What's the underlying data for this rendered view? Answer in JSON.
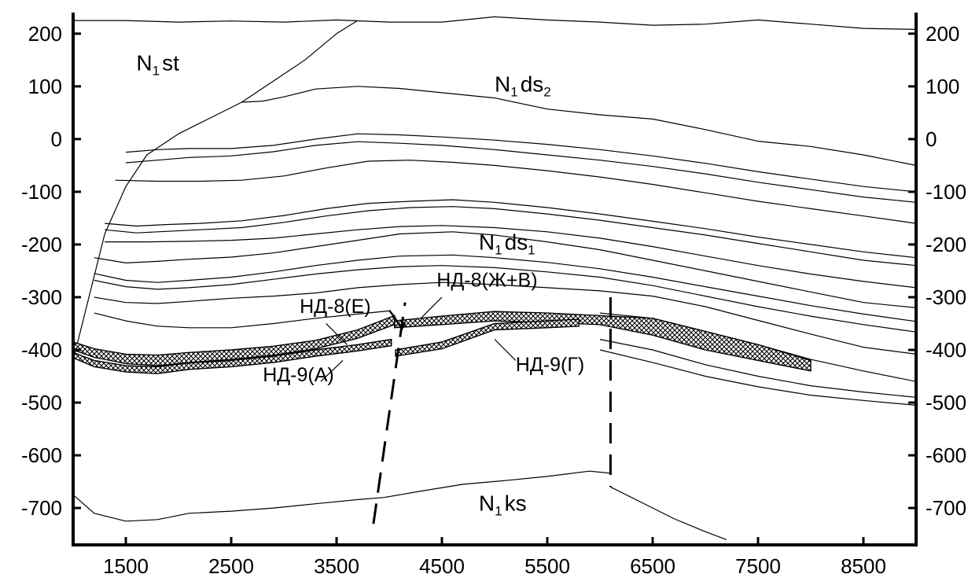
{
  "chart_data": {
    "type": "line",
    "title": "",
    "xlabel": "",
    "ylabel": "",
    "xlim": [
      1000,
      9000
    ],
    "ylim": [
      -770,
      240
    ],
    "x_ticks": [
      "1500",
      "2500",
      "3500",
      "4500",
      "5500",
      "6500",
      "7500",
      "8500"
    ],
    "y_ticks_left": [
      "200",
      "100",
      "0",
      "-100",
      "-200",
      "-300",
      "-400",
      "-500",
      "-600",
      "-700"
    ],
    "y_ticks_right": [
      "200",
      "100",
      "0",
      "-100",
      "-200",
      "-300",
      "-400",
      "-500",
      "-600",
      "-700"
    ],
    "formations": [
      {
        "base": "N",
        "sub1": "1",
        "text": "st",
        "x": 1600,
        "y": 130
      },
      {
        "base": "N",
        "sub1": "1",
        "text": "ds",
        "sub2": "2",
        "x": 5000,
        "y": 90
      },
      {
        "base": "N",
        "sub1": "1",
        "text": "ds",
        "sub2": "1",
        "x": 4850,
        "y": -210
      },
      {
        "base": "N",
        "sub1": "1",
        "text": "ks",
        "x": 4850,
        "y": -705
      }
    ],
    "series": [
      {
        "x": [
          1000,
          1500,
          2000,
          2500,
          3000,
          3500,
          4000,
          4500,
          5000,
          5500,
          6000,
          6500,
          7000,
          7500,
          8000,
          8500,
          9000
        ],
        "y": [
          225,
          225,
          222,
          224,
          222,
          226,
          222,
          222,
          232,
          226,
          222,
          216,
          218,
          226,
          218,
          210,
          208
        ]
      },
      {
        "x": [
          1000,
          1150,
          1300,
          1500,
          1700,
          2000,
          2300,
          2600,
          2900,
          3200,
          3500,
          3700
        ],
        "y": [
          -420,
          -300,
          -180,
          -90,
          -30,
          10,
          40,
          70,
          110,
          150,
          200,
          225
        ]
      },
      {
        "x": [
          2600,
          2800,
          3000,
          3300,
          3700,
          4100,
          4500,
          5000,
          5500,
          6000,
          6500,
          7000,
          7500,
          8000,
          8500,
          9000
        ],
        "y": [
          70,
          72,
          80,
          95,
          100,
          96,
          88,
          78,
          57,
          46,
          38,
          18,
          -4,
          -14,
          -30,
          -50
        ]
      },
      {
        "x": [
          1500,
          1800,
          2100,
          2500,
          2900,
          3300,
          3700,
          4100,
          4500,
          5000,
          5500,
          6000,
          6500,
          7000,
          7500,
          8000,
          8500,
          9000
        ],
        "y": [
          -25,
          -20,
          -18,
          -18,
          -12,
          0,
          10,
          8,
          4,
          -2,
          -10,
          -20,
          -32,
          -46,
          -62,
          -76,
          -90,
          -100
        ]
      },
      {
        "x": [
          1500,
          1800,
          2100,
          2500,
          2900,
          3300,
          3700,
          4100,
          4500,
          5000,
          5500,
          6000,
          6500,
          7000,
          7500,
          8000,
          8500,
          9000
        ],
        "y": [
          -45,
          -40,
          -35,
          -32,
          -24,
          -12,
          -5,
          -8,
          -12,
          -20,
          -30,
          -40,
          -52,
          -66,
          -82,
          -96,
          -110,
          -120
        ]
      },
      {
        "x": [
          1400,
          1800,
          2200,
          2600,
          3000,
          3400,
          3800,
          4200,
          4600,
          5000,
          5500,
          6000,
          6500,
          7000,
          7500,
          8000,
          8500,
          9000
        ],
        "y": [
          -78,
          -80,
          -80,
          -78,
          -70,
          -55,
          -42,
          -40,
          -44,
          -50,
          -60,
          -72,
          -86,
          -102,
          -118,
          -132,
          -146,
          -160
        ]
      },
      {
        "x": [
          1300,
          1600,
          1900,
          2200,
          2600,
          3000,
          3400,
          3800,
          4200,
          4600,
          5000,
          5500,
          6000,
          6500,
          7000,
          7500,
          8000,
          8500,
          9000
        ],
        "y": [
          -160,
          -165,
          -162,
          -160,
          -155,
          -145,
          -132,
          -122,
          -118,
          -115,
          -120,
          -130,
          -142,
          -156,
          -170,
          -186,
          -200,
          -214,
          -225
        ]
      },
      {
        "x": [
          1300,
          1600,
          1900,
          2200,
          2600,
          3000,
          3400,
          3800,
          4200,
          4600,
          5000,
          5500,
          6000,
          6500,
          7000,
          7500,
          8000,
          8500,
          9000
        ],
        "y": [
          -172,
          -178,
          -175,
          -172,
          -168,
          -158,
          -146,
          -136,
          -130,
          -128,
          -132,
          -142,
          -154,
          -168,
          -182,
          -198,
          -214,
          -230,
          -240
        ]
      },
      {
        "x": [
          1300,
          1700,
          2100,
          2500,
          2900,
          3300,
          3700,
          4100,
          4500,
          5000,
          5500,
          6000,
          6500,
          7000,
          7500,
          8000,
          8500,
          9000
        ],
        "y": [
          -195,
          -195,
          -194,
          -192,
          -188,
          -180,
          -172,
          -166,
          -164,
          -168,
          -176,
          -188,
          -204,
          -222,
          -240,
          -256,
          -270,
          -282
        ]
      },
      {
        "x": [
          1200,
          1500,
          1800,
          2100,
          2500,
          2900,
          3300,
          3700,
          4100,
          4600,
          5000,
          5500,
          6000,
          6500,
          7000,
          7500,
          8000,
          8500,
          9000
        ],
        "y": [
          -225,
          -235,
          -232,
          -228,
          -224,
          -216,
          -204,
          -192,
          -180,
          -176,
          -182,
          -195,
          -210,
          -230,
          -250,
          -270,
          -290,
          -310,
          -320
        ]
      },
      {
        "x": [
          1200,
          1500,
          1800,
          2100,
          2500,
          2900,
          3300,
          3700,
          4100,
          4600,
          5000,
          5500,
          6000,
          6500,
          7000,
          7500,
          8000,
          8500,
          9000
        ],
        "y": [
          -255,
          -268,
          -272,
          -268,
          -262,
          -252,
          -240,
          -230,
          -222,
          -220,
          -225,
          -234,
          -246,
          -262,
          -280,
          -298,
          -316,
          -332,
          -346
        ]
      },
      {
        "x": [
          1200,
          1500,
          1800,
          2100,
          2500,
          2900,
          3300,
          3700,
          4100,
          4500,
          5000,
          5500,
          6000,
          6500,
          7000,
          7500,
          8000,
          8500,
          9000
        ],
        "y": [
          -268,
          -280,
          -285,
          -282,
          -276,
          -266,
          -256,
          -248,
          -242,
          -240,
          -244,
          -252,
          -262,
          -278,
          -298,
          -318,
          -336,
          -352,
          -366
        ]
      },
      {
        "x": [
          1200,
          1500,
          1800,
          2100,
          2500,
          2900,
          3300,
          3700,
          4100,
          4500,
          5000,
          5500,
          6000,
          6500,
          7000,
          7500,
          8000,
          8500,
          9000
        ],
        "y": [
          -300,
          -310,
          -312,
          -308,
          -302,
          -298,
          -292,
          -282,
          -276,
          -272,
          -276,
          -282,
          -288,
          -298,
          -318,
          -344,
          -370,
          -395,
          -408
        ]
      },
      {
        "x": [
          1200,
          1500,
          1800,
          2100,
          2500,
          2900,
          3300,
          3700,
          4000
        ],
        "y": [
          -330,
          -345,
          -355,
          -358,
          -358,
          -350,
          -340,
          -332,
          -326
        ]
      },
      {
        "x": [
          6000,
          6500,
          7000,
          7500,
          8000,
          8500,
          9000
        ],
        "y": [
          -330,
          -340,
          -365,
          -390,
          -418,
          -440,
          -460
        ]
      },
      {
        "x": [
          6000,
          6500,
          7000,
          7500,
          8000,
          8500,
          9000
        ],
        "y": [
          -380,
          -400,
          -428,
          -450,
          -468,
          -480,
          -490
        ]
      },
      {
        "x": [
          6000,
          6500,
          7000,
          7500,
          8000,
          8500,
          9000
        ],
        "y": [
          -400,
          -424,
          -450,
          -470,
          -486,
          -496,
          -505
        ]
      },
      {
        "x": [
          1000,
          1200,
          1500,
          1800,
          2100,
          2500,
          2900,
          3300,
          3700,
          3950
        ],
        "y": [
          -675,
          -710,
          -725,
          -722,
          -710,
          -706,
          -700,
          -692,
          -684,
          -680
        ]
      },
      {
        "x": [
          3950,
          4300,
          4700,
          5100,
          5500,
          5900,
          6100
        ],
        "y": [
          -680,
          -668,
          -655,
          -648,
          -640,
          -630,
          -634
        ]
      },
      {
        "x": [
          6100,
          6400,
          6700,
          7000,
          7200
        ],
        "y": [
          -660,
          -690,
          -720,
          -745,
          -760
        ]
      }
    ],
    "beds": [
      {
        "x": [
          1000,
          1200,
          1500,
          1800,
          2100,
          2500,
          2900,
          3300,
          3700,
          4050
        ],
        "top": [
          -385,
          -398,
          -408,
          -410,
          -405,
          -400,
          -393,
          -382,
          -362,
          -335
        ],
        "bottom": [
          -400,
          -414,
          -426,
          -430,
          -424,
          -418,
          -410,
          -398,
          -378,
          -352
        ]
      },
      {
        "x": [
          4050,
          4500,
          5000,
          5500,
          6000,
          6500,
          7000,
          7500,
          8000
        ],
        "top": [
          -345,
          -336,
          -327,
          -330,
          -335,
          -340,
          -365,
          -390,
          -420
        ],
        "bottom": [
          -358,
          -352,
          -345,
          -348,
          -352,
          -372,
          -400,
          -420,
          -440
        ]
      },
      {
        "x": [
          1000,
          1200,
          1500,
          1800,
          2100,
          2500,
          2900,
          3300,
          3700,
          4020
        ],
        "top": [
          -405,
          -420,
          -430,
          -432,
          -425,
          -420,
          -412,
          -400,
          -390,
          -380
        ],
        "bottom": [
          -415,
          -432,
          -442,
          -445,
          -437,
          -432,
          -424,
          -412,
          -402,
          -392
        ]
      },
      {
        "x": [
          4060,
          4500,
          5000,
          5500,
          5800
        ],
        "top": [
          -400,
          -385,
          -350,
          -345,
          -342
        ],
        "bottom": [
          -412,
          -398,
          -362,
          -358,
          -355
        ]
      }
    ],
    "faults": [
      {
        "x": [
          3850,
          4150
        ],
        "y": [
          -730,
          -310
        ]
      },
      {
        "x": [
          6100,
          6100
        ],
        "y": [
          -300,
          -660
        ]
      }
    ],
    "fault_offsets": [
      {
        "x": [
          4000,
          4050,
          4080,
          4120,
          4150
        ],
        "y": [
          -325,
          -338,
          -348,
          -360,
          -348
        ]
      }
    ],
    "annotations": [
      {
        "text": "НД-8(Е)",
        "x": 3150,
        "y": -330
      },
      {
        "text": "НД-8(Ж+В)",
        "x": 4450,
        "y": -280
      },
      {
        "text": "НД-9(А)",
        "x": 2800,
        "y": -460
      },
      {
        "text": "НД-9(Г)",
        "x": 5200,
        "y": -440
      }
    ],
    "leaders": [
      {
        "x": [
          3400,
          3600
        ],
        "y": [
          -350,
          -390
        ]
      },
      {
        "x": [
          4500,
          4300
        ],
        "y": [
          -300,
          -340
        ]
      },
      {
        "x": [
          3350,
          3560
        ],
        "y": [
          -460,
          -420
        ]
      },
      {
        "x": [
          5200,
          5000
        ],
        "y": [
          -420,
          -380
        ]
      }
    ],
    "grid": false,
    "legend": "none"
  }
}
